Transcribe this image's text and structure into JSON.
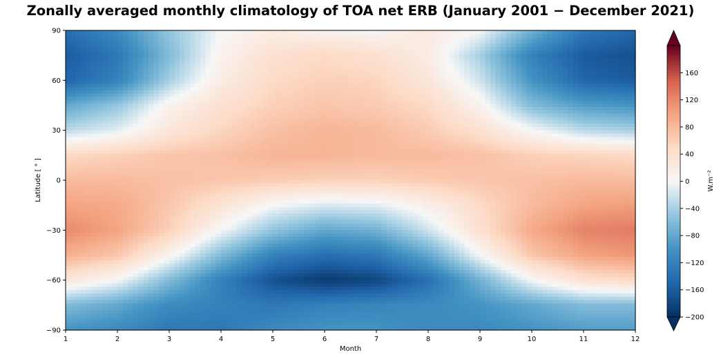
{
  "chart_data": {
    "type": "heatmap",
    "title": "Zonally averaged monthly climatology of TOA net ERB (January 2001  −  December 2021)",
    "xlabel": "Month",
    "ylabel": "Latitude [ ° ]",
    "xlim": [
      1,
      12
    ],
    "ylim": [
      -90,
      90
    ],
    "x_ticks": [
      "1",
      "2",
      "3",
      "4",
      "5",
      "6",
      "7",
      "8",
      "9",
      "10",
      "11",
      "12"
    ],
    "y_ticks": [
      "−90",
      "−60",
      "−30",
      "0",
      "30",
      "60",
      "90"
    ],
    "colormap": "RdBu_r",
    "colorbar": {
      "label": "W.m⁻²",
      "vmin": -200,
      "vmax": 200,
      "ticks": [
        "−200",
        "−160",
        "−120",
        "−80",
        "−40",
        "0",
        "40",
        "80",
        "120",
        "160"
      ],
      "extend": "both"
    },
    "months": [
      1,
      2,
      3,
      4,
      5,
      6,
      7,
      8,
      9,
      10,
      11,
      12
    ],
    "latitudes": [
      90,
      75,
      60,
      45,
      30,
      15,
      0,
      -15,
      -30,
      -45,
      -60,
      -75,
      -90
    ],
    "values": [
      [
        -140,
        -110,
        -50,
        0,
        20,
        10,
        5,
        25,
        0,
        -70,
        -130,
        -150
      ],
      [
        -160,
        -130,
        -60,
        10,
        40,
        50,
        40,
        20,
        -40,
        -120,
        -160,
        -170
      ],
      [
        -150,
        -120,
        -40,
        20,
        50,
        60,
        55,
        30,
        -20,
        -100,
        -150,
        -160
      ],
      [
        -80,
        -50,
        10,
        40,
        60,
        70,
        65,
        50,
        10,
        -60,
        -90,
        -100
      ],
      [
        -30,
        -10,
        30,
        55,
        75,
        85,
        80,
        65,
        40,
        0,
        -30,
        -40
      ],
      [
        50,
        60,
        70,
        75,
        85,
        85,
        80,
        80,
        75,
        60,
        55,
        50
      ],
      [
        80,
        80,
        75,
        70,
        65,
        60,
        60,
        65,
        70,
        75,
        80,
        80
      ],
      [
        100,
        95,
        70,
        35,
        0,
        -15,
        -10,
        15,
        50,
        80,
        100,
        105
      ],
      [
        120,
        100,
        60,
        0,
        -50,
        -80,
        -70,
        -20,
        40,
        95,
        125,
        130
      ],
      [
        90,
        70,
        10,
        -60,
        -120,
        -140,
        -130,
        -80,
        0,
        70,
        100,
        110
      ],
      [
        30,
        0,
        -60,
        -120,
        -170,
        -190,
        -180,
        -140,
        -70,
        0,
        40,
        50
      ],
      [
        -60,
        -80,
        -110,
        -120,
        -130,
        -120,
        -115,
        -110,
        -100,
        -80,
        -60,
        -60
      ],
      [
        -100,
        -110,
        -130,
        -130,
        -110,
        -100,
        -100,
        -110,
        -110,
        -100,
        -90,
        -90
      ]
    ]
  }
}
